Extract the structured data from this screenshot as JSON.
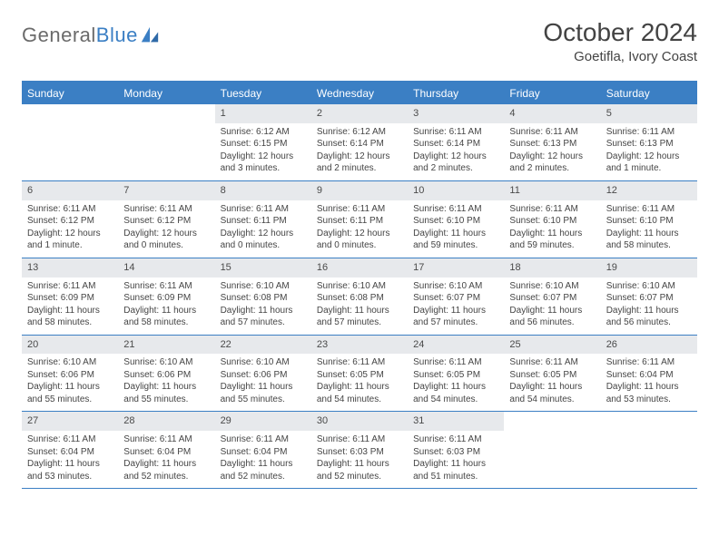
{
  "logo": {
    "part1": "General",
    "part2": "Blue"
  },
  "title": "October 2024",
  "location": "Goetifla, Ivory Coast",
  "colors": {
    "header_bg": "#3b7fc4",
    "daynum_bg": "#e7e9ec",
    "text": "#454545",
    "title_text": "#434343",
    "logo_gray": "#6b6b6b",
    "logo_blue": "#3b7fc4",
    "page_bg": "#ffffff"
  },
  "typography": {
    "title_fontsize": 28,
    "location_fontsize": 15,
    "dayheader_fontsize": 12,
    "daynum_fontsize": 11,
    "body_fontsize": 10
  },
  "layout": {
    "columns": 7,
    "rows": 5
  },
  "day_headers": [
    "Sunday",
    "Monday",
    "Tuesday",
    "Wednesday",
    "Thursday",
    "Friday",
    "Saturday"
  ],
  "weeks": [
    [
      {
        "empty": true
      },
      {
        "empty": true
      },
      {
        "num": "1",
        "sunrise": "Sunrise: 6:12 AM",
        "sunset": "Sunset: 6:15 PM",
        "daylight": "Daylight: 12 hours and 3 minutes."
      },
      {
        "num": "2",
        "sunrise": "Sunrise: 6:12 AM",
        "sunset": "Sunset: 6:14 PM",
        "daylight": "Daylight: 12 hours and 2 minutes."
      },
      {
        "num": "3",
        "sunrise": "Sunrise: 6:11 AM",
        "sunset": "Sunset: 6:14 PM",
        "daylight": "Daylight: 12 hours and 2 minutes."
      },
      {
        "num": "4",
        "sunrise": "Sunrise: 6:11 AM",
        "sunset": "Sunset: 6:13 PM",
        "daylight": "Daylight: 12 hours and 2 minutes."
      },
      {
        "num": "5",
        "sunrise": "Sunrise: 6:11 AM",
        "sunset": "Sunset: 6:13 PM",
        "daylight": "Daylight: 12 hours and 1 minute."
      }
    ],
    [
      {
        "num": "6",
        "sunrise": "Sunrise: 6:11 AM",
        "sunset": "Sunset: 6:12 PM",
        "daylight": "Daylight: 12 hours and 1 minute."
      },
      {
        "num": "7",
        "sunrise": "Sunrise: 6:11 AM",
        "sunset": "Sunset: 6:12 PM",
        "daylight": "Daylight: 12 hours and 0 minutes."
      },
      {
        "num": "8",
        "sunrise": "Sunrise: 6:11 AM",
        "sunset": "Sunset: 6:11 PM",
        "daylight": "Daylight: 12 hours and 0 minutes."
      },
      {
        "num": "9",
        "sunrise": "Sunrise: 6:11 AM",
        "sunset": "Sunset: 6:11 PM",
        "daylight": "Daylight: 12 hours and 0 minutes."
      },
      {
        "num": "10",
        "sunrise": "Sunrise: 6:11 AM",
        "sunset": "Sunset: 6:10 PM",
        "daylight": "Daylight: 11 hours and 59 minutes."
      },
      {
        "num": "11",
        "sunrise": "Sunrise: 6:11 AM",
        "sunset": "Sunset: 6:10 PM",
        "daylight": "Daylight: 11 hours and 59 minutes."
      },
      {
        "num": "12",
        "sunrise": "Sunrise: 6:11 AM",
        "sunset": "Sunset: 6:10 PM",
        "daylight": "Daylight: 11 hours and 58 minutes."
      }
    ],
    [
      {
        "num": "13",
        "sunrise": "Sunrise: 6:11 AM",
        "sunset": "Sunset: 6:09 PM",
        "daylight": "Daylight: 11 hours and 58 minutes."
      },
      {
        "num": "14",
        "sunrise": "Sunrise: 6:11 AM",
        "sunset": "Sunset: 6:09 PM",
        "daylight": "Daylight: 11 hours and 58 minutes."
      },
      {
        "num": "15",
        "sunrise": "Sunrise: 6:10 AM",
        "sunset": "Sunset: 6:08 PM",
        "daylight": "Daylight: 11 hours and 57 minutes."
      },
      {
        "num": "16",
        "sunrise": "Sunrise: 6:10 AM",
        "sunset": "Sunset: 6:08 PM",
        "daylight": "Daylight: 11 hours and 57 minutes."
      },
      {
        "num": "17",
        "sunrise": "Sunrise: 6:10 AM",
        "sunset": "Sunset: 6:07 PM",
        "daylight": "Daylight: 11 hours and 57 minutes."
      },
      {
        "num": "18",
        "sunrise": "Sunrise: 6:10 AM",
        "sunset": "Sunset: 6:07 PM",
        "daylight": "Daylight: 11 hours and 56 minutes."
      },
      {
        "num": "19",
        "sunrise": "Sunrise: 6:10 AM",
        "sunset": "Sunset: 6:07 PM",
        "daylight": "Daylight: 11 hours and 56 minutes."
      }
    ],
    [
      {
        "num": "20",
        "sunrise": "Sunrise: 6:10 AM",
        "sunset": "Sunset: 6:06 PM",
        "daylight": "Daylight: 11 hours and 55 minutes."
      },
      {
        "num": "21",
        "sunrise": "Sunrise: 6:10 AM",
        "sunset": "Sunset: 6:06 PM",
        "daylight": "Daylight: 11 hours and 55 minutes."
      },
      {
        "num": "22",
        "sunrise": "Sunrise: 6:10 AM",
        "sunset": "Sunset: 6:06 PM",
        "daylight": "Daylight: 11 hours and 55 minutes."
      },
      {
        "num": "23",
        "sunrise": "Sunrise: 6:11 AM",
        "sunset": "Sunset: 6:05 PM",
        "daylight": "Daylight: 11 hours and 54 minutes."
      },
      {
        "num": "24",
        "sunrise": "Sunrise: 6:11 AM",
        "sunset": "Sunset: 6:05 PM",
        "daylight": "Daylight: 11 hours and 54 minutes."
      },
      {
        "num": "25",
        "sunrise": "Sunrise: 6:11 AM",
        "sunset": "Sunset: 6:05 PM",
        "daylight": "Daylight: 11 hours and 54 minutes."
      },
      {
        "num": "26",
        "sunrise": "Sunrise: 6:11 AM",
        "sunset": "Sunset: 6:04 PM",
        "daylight": "Daylight: 11 hours and 53 minutes."
      }
    ],
    [
      {
        "num": "27",
        "sunrise": "Sunrise: 6:11 AM",
        "sunset": "Sunset: 6:04 PM",
        "daylight": "Daylight: 11 hours and 53 minutes."
      },
      {
        "num": "28",
        "sunrise": "Sunrise: 6:11 AM",
        "sunset": "Sunset: 6:04 PM",
        "daylight": "Daylight: 11 hours and 52 minutes."
      },
      {
        "num": "29",
        "sunrise": "Sunrise: 6:11 AM",
        "sunset": "Sunset: 6:04 PM",
        "daylight": "Daylight: 11 hours and 52 minutes."
      },
      {
        "num": "30",
        "sunrise": "Sunrise: 6:11 AM",
        "sunset": "Sunset: 6:03 PM",
        "daylight": "Daylight: 11 hours and 52 minutes."
      },
      {
        "num": "31",
        "sunrise": "Sunrise: 6:11 AM",
        "sunset": "Sunset: 6:03 PM",
        "daylight": "Daylight: 11 hours and 51 minutes."
      },
      {
        "empty": true
      },
      {
        "empty": true
      }
    ]
  ]
}
